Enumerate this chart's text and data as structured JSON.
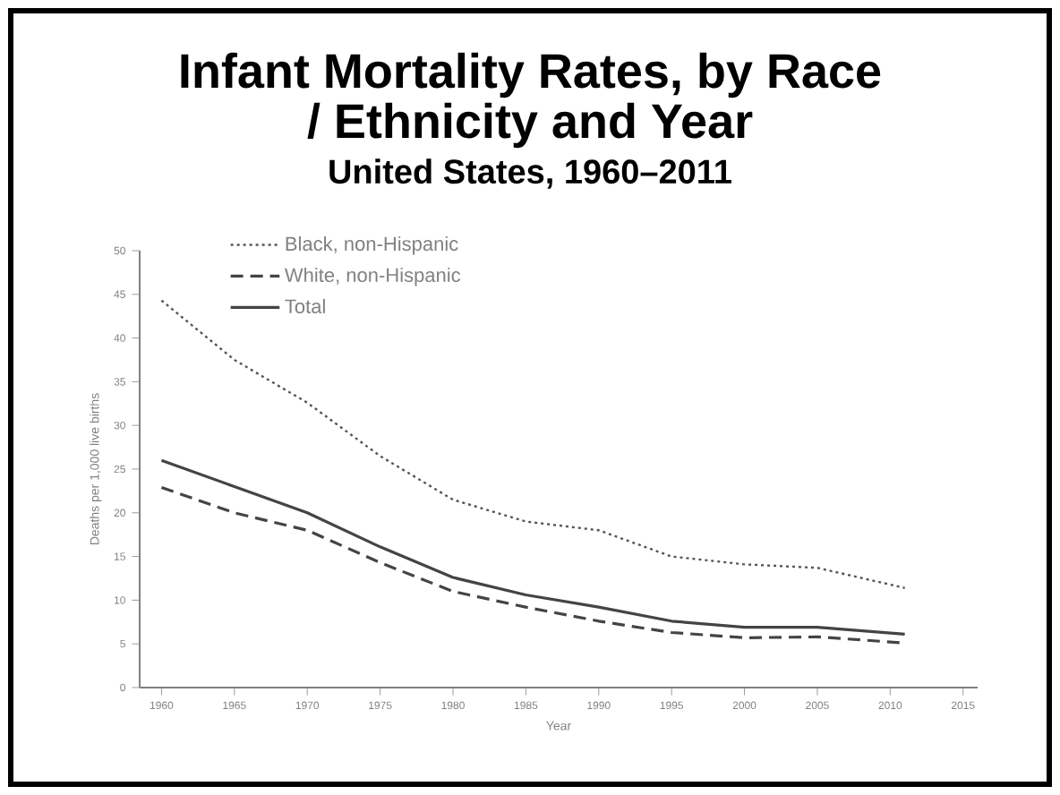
{
  "chart_data": {
    "type": "line",
    "title": "Infant Mortality Rates, by Race / Ethnicity and Year",
    "subtitle": "United States, 1960–2011",
    "xlabel": "Year",
    "ylabel": "Deaths per 1,000 live births",
    "x": [
      1960,
      1965,
      1970,
      1975,
      1980,
      1985,
      1990,
      1995,
      2000,
      2005,
      2011
    ],
    "series": [
      {
        "name": "Black, non-Hispanic",
        "color": "#555555",
        "line_style": "dotted",
        "values": [
          44.3,
          37.5,
          32.6,
          26.5,
          21.5,
          19,
          18,
          15,
          14.1,
          13.7,
          11.4
        ]
      },
      {
        "name": "White, non-Hispanic",
        "color": "#444444",
        "line_style": "dashed",
        "values": [
          22.9,
          20,
          18,
          14.3,
          11,
          9.2,
          7.6,
          6.3,
          5.7,
          5.8,
          5.1
        ]
      },
      {
        "name": "Total",
        "color": "#444444",
        "line_style": "solid",
        "values": [
          26,
          23,
          20,
          16.1,
          12.6,
          10.6,
          9.2,
          7.6,
          6.9,
          6.9,
          6.1
        ]
      }
    ],
    "xlim": [
      1958.5,
      2016
    ],
    "ylim": [
      0,
      50
    ],
    "xticks": [
      1960,
      1965,
      1970,
      1975,
      1980,
      1985,
      1990,
      1995,
      2000,
      2005,
      2010,
      2015
    ],
    "yticks": [
      0,
      5,
      10,
      15,
      20,
      25,
      30,
      35,
      40,
      45,
      50
    ],
    "legend": "top left",
    "marker": "none",
    "grid": false
  }
}
